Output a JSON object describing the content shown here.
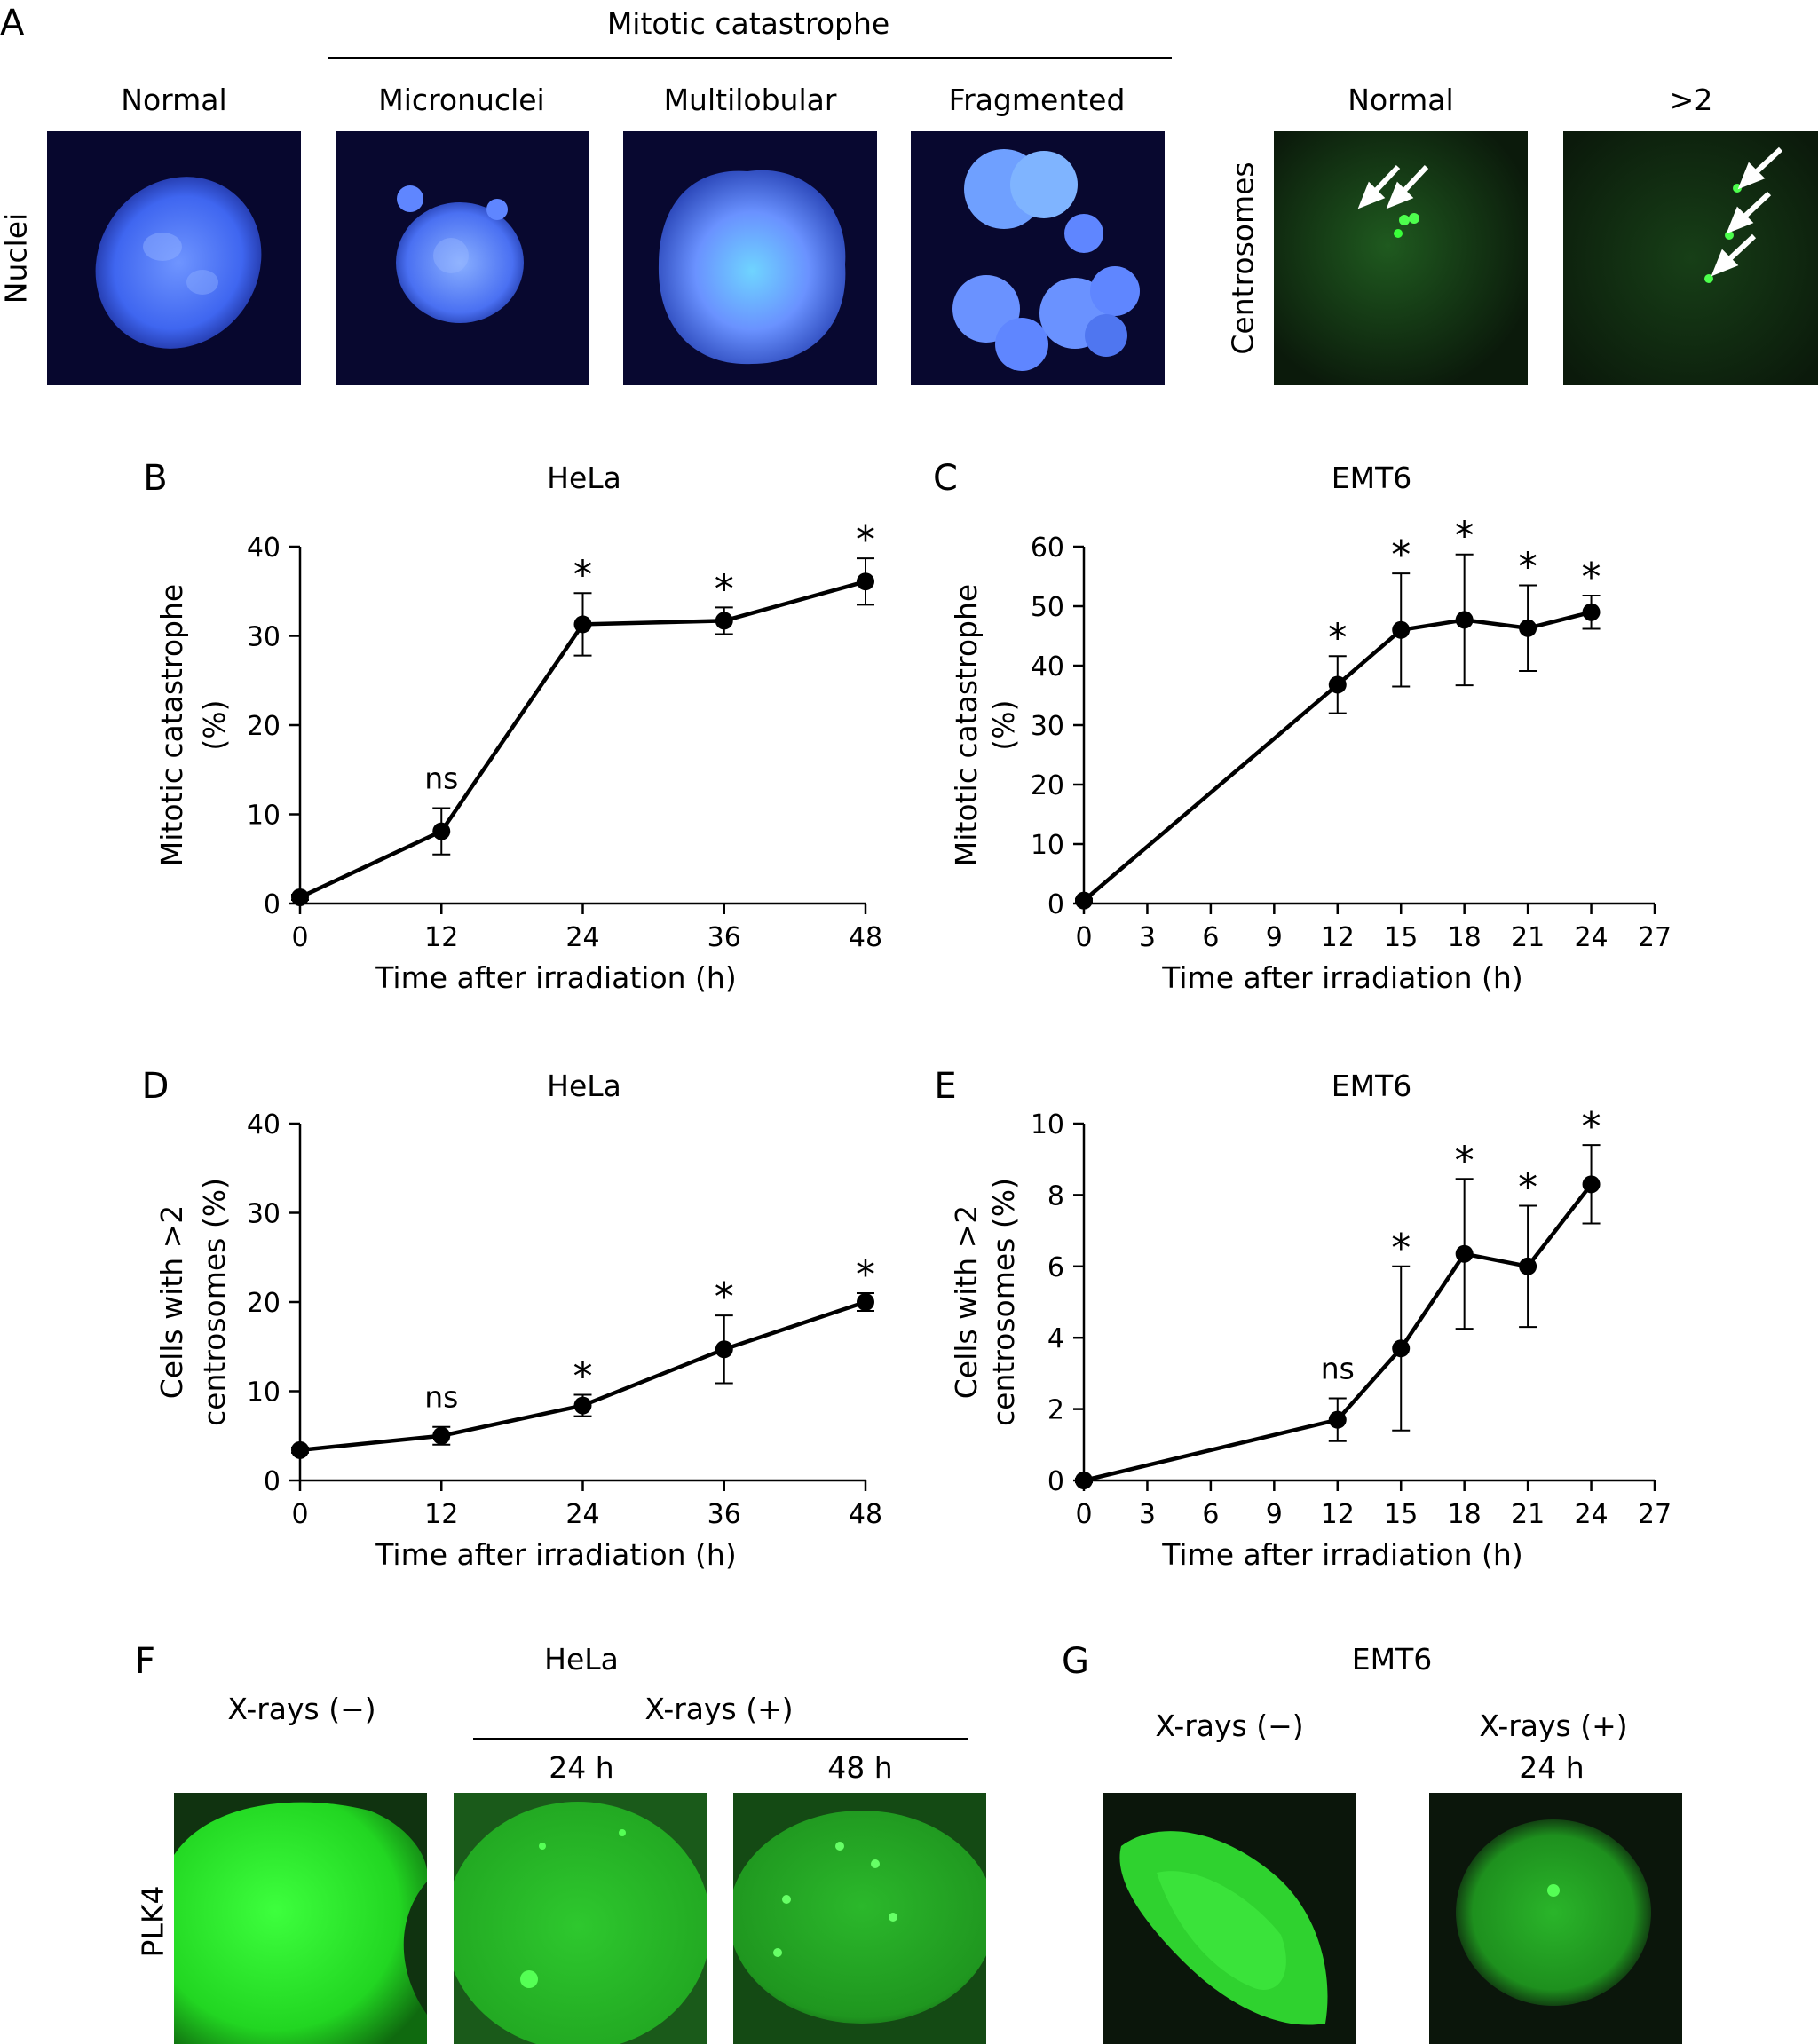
{
  "panelA": {
    "letter": "A",
    "group_title": "Mitotic catastrophe",
    "row_label_nuclei": "Nuclei",
    "row_label_centrosomes": "Centrosomes",
    "images": [
      {
        "caption": "Normal",
        "stain": "nuclei"
      },
      {
        "caption": "Micronuclei",
        "stain": "nuclei"
      },
      {
        "caption": "Multilobular",
        "stain": "nuclei"
      },
      {
        "caption": "Fragmented",
        "stain": "nuclei"
      },
      {
        "caption": "Normal",
        "stain": "centrosomes"
      },
      {
        "caption": ">2",
        "stain": "centrosomes"
      }
    ],
    "colors": {
      "nuclei_bg": "#0a0a3a",
      "nuclei_fg": "#5f86ff",
      "centrosome_bg": "#0a1a0a",
      "centrosome_fg": "#39ff39"
    }
  },
  "panelF": {
    "letter": "F",
    "cell_line": "HeLa",
    "xray_minus": "X-rays (−)",
    "xray_plus": "X-rays (+)",
    "time_24": "24 h",
    "time_48": "48 h",
    "row_label": "PLK4"
  },
  "panelG": {
    "letter": "G",
    "cell_line": "EMT6",
    "xray_minus": "X-rays (−)",
    "xray_plus": "X-rays (+)",
    "time_24": "24 h"
  },
  "chart_data": [
    {
      "id": "B",
      "letter": "B",
      "type": "line",
      "title": "HeLa",
      "xlabel": "Time after irradiation (h)",
      "ylabel": [
        "Mitotic catastrophe",
        "(%)"
      ],
      "xlim": [
        0,
        48
      ],
      "ylim": [
        0,
        40
      ],
      "xticks": [
        0,
        12,
        24,
        36,
        48
      ],
      "yticks": [
        0,
        10,
        20,
        30,
        40
      ],
      "x": [
        0,
        12,
        24,
        36,
        48
      ],
      "y": [
        0.7,
        8.1,
        31.3,
        31.7,
        36.1
      ],
      "err": [
        0.3,
        2.6,
        3.5,
        1.5,
        2.6
      ],
      "annotations": [
        "",
        "ns",
        "*",
        "*",
        "*"
      ],
      "grid": false
    },
    {
      "id": "C",
      "letter": "C",
      "type": "line",
      "title": "EMT6",
      "xlabel": "Time after irradiation (h)",
      "ylabel": [
        "Mitotic catastrophe",
        "(%)"
      ],
      "xlim": [
        0,
        27
      ],
      "ylim": [
        0,
        60
      ],
      "xticks": [
        0,
        3,
        6,
        9,
        12,
        15,
        18,
        21,
        24,
        27
      ],
      "yticks": [
        0,
        10,
        20,
        30,
        40,
        50,
        60
      ],
      "x": [
        0,
        12,
        15,
        18,
        21,
        24
      ],
      "y": [
        0.5,
        36.8,
        46.0,
        47.7,
        46.3,
        49.0
      ],
      "err": [
        0.3,
        4.8,
        9.5,
        11.0,
        7.2,
        2.8
      ],
      "annotations": [
        "",
        "*",
        "*",
        "*",
        "*",
        "*"
      ],
      "grid": false
    },
    {
      "id": "D",
      "letter": "D",
      "type": "line",
      "title": "HeLa",
      "xlabel": "Time after irradiation (h)",
      "ylabel": [
        "Cells with >2",
        "centrosomes (%)"
      ],
      "xlim": [
        0,
        48
      ],
      "ylim": [
        0,
        40
      ],
      "xticks": [
        0,
        12,
        24,
        36,
        48
      ],
      "yticks": [
        0,
        10,
        20,
        30,
        40
      ],
      "x": [
        0,
        12,
        24,
        36,
        48
      ],
      "y": [
        3.4,
        5.0,
        8.4,
        14.7,
        20.0
      ],
      "err": [
        0.3,
        1.0,
        1.2,
        3.8,
        1.0
      ],
      "annotations": [
        "",
        "ns",
        "*",
        "*",
        "*"
      ],
      "grid": false
    },
    {
      "id": "E",
      "letter": "E",
      "type": "line",
      "title": "EMT6",
      "xlabel": "Time after irradiation (h)",
      "ylabel": [
        "Cells with >2",
        "centrosomes (%)"
      ],
      "xlim": [
        0,
        27
      ],
      "ylim": [
        0,
        10
      ],
      "xticks": [
        0,
        3,
        6,
        9,
        12,
        15,
        18,
        21,
        24,
        27
      ],
      "yticks": [
        0,
        2,
        4,
        6,
        8,
        10
      ],
      "x": [
        0,
        12,
        15,
        18,
        21,
        24
      ],
      "y": [
        0.0,
        1.7,
        3.7,
        6.35,
        6.0,
        8.3
      ],
      "err": [
        0.05,
        0.6,
        2.3,
        2.1,
        1.7,
        1.1
      ],
      "annotations": [
        "",
        "ns",
        "*",
        "*",
        "*",
        "*"
      ],
      "grid": false
    }
  ]
}
